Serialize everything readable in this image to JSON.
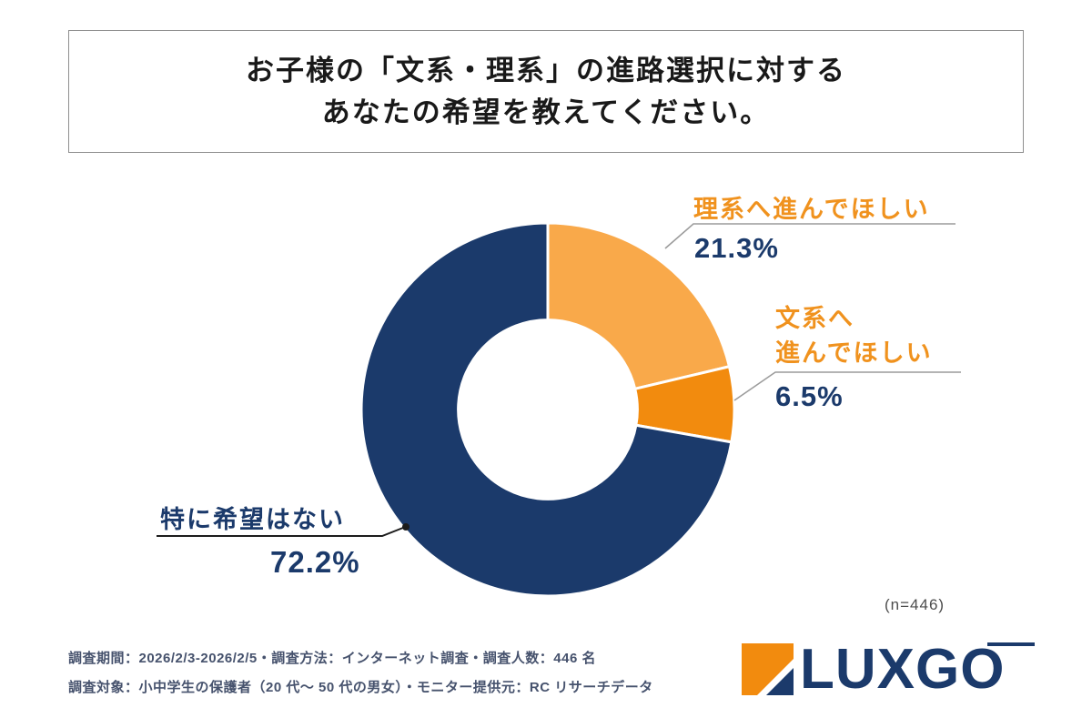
{
  "title": {
    "line1": "お子様の「文系・理系」の進路選択に対する",
    "line2": "あなたの希望を教えてください。"
  },
  "chart_data": {
    "type": "pie",
    "subtype": "donut",
    "title": "お子様の「文系・理系」の進路選択に対するあなたの希望",
    "categories": [
      "理系へ進んでほしい",
      "文系へ進んでほしい",
      "特に希望はない"
    ],
    "values": [
      21.3,
      6.5,
      72.2
    ],
    "unit": "%",
    "colors": [
      "#F9A94A",
      "#F28B0E",
      "#1B3A6B"
    ],
    "start_angle_deg": 0,
    "direction": "clockwise",
    "inner_radius_ratio": 0.48,
    "sample_size": 446,
    "sample_size_label": "(n=446)"
  },
  "callouts": {
    "science": {
      "label": "理系へ進んでほしい",
      "value": "21.3%"
    },
    "humanities": {
      "label_line1": "文系へ",
      "label_line2": "進んでほしい",
      "value": "6.5%"
    },
    "no_preference": {
      "label": "特に希望はない",
      "value": "72.2%"
    }
  },
  "footer": {
    "line1": "調査期間：2026/2/3-2026/2/5・調査方法：インターネット調査・調査人数：446 名",
    "line2": "調査対象：小中学生の保護者（20 代〜 50 代の男女）・モニター提供元：RC リサーチデータ"
  },
  "logo": {
    "text": "LUXGO"
  },
  "colors": {
    "navy": "#1B3A6B",
    "orange_light": "#F9A94A",
    "orange_dark": "#F28B0E",
    "label_orange": "#F0921E"
  }
}
